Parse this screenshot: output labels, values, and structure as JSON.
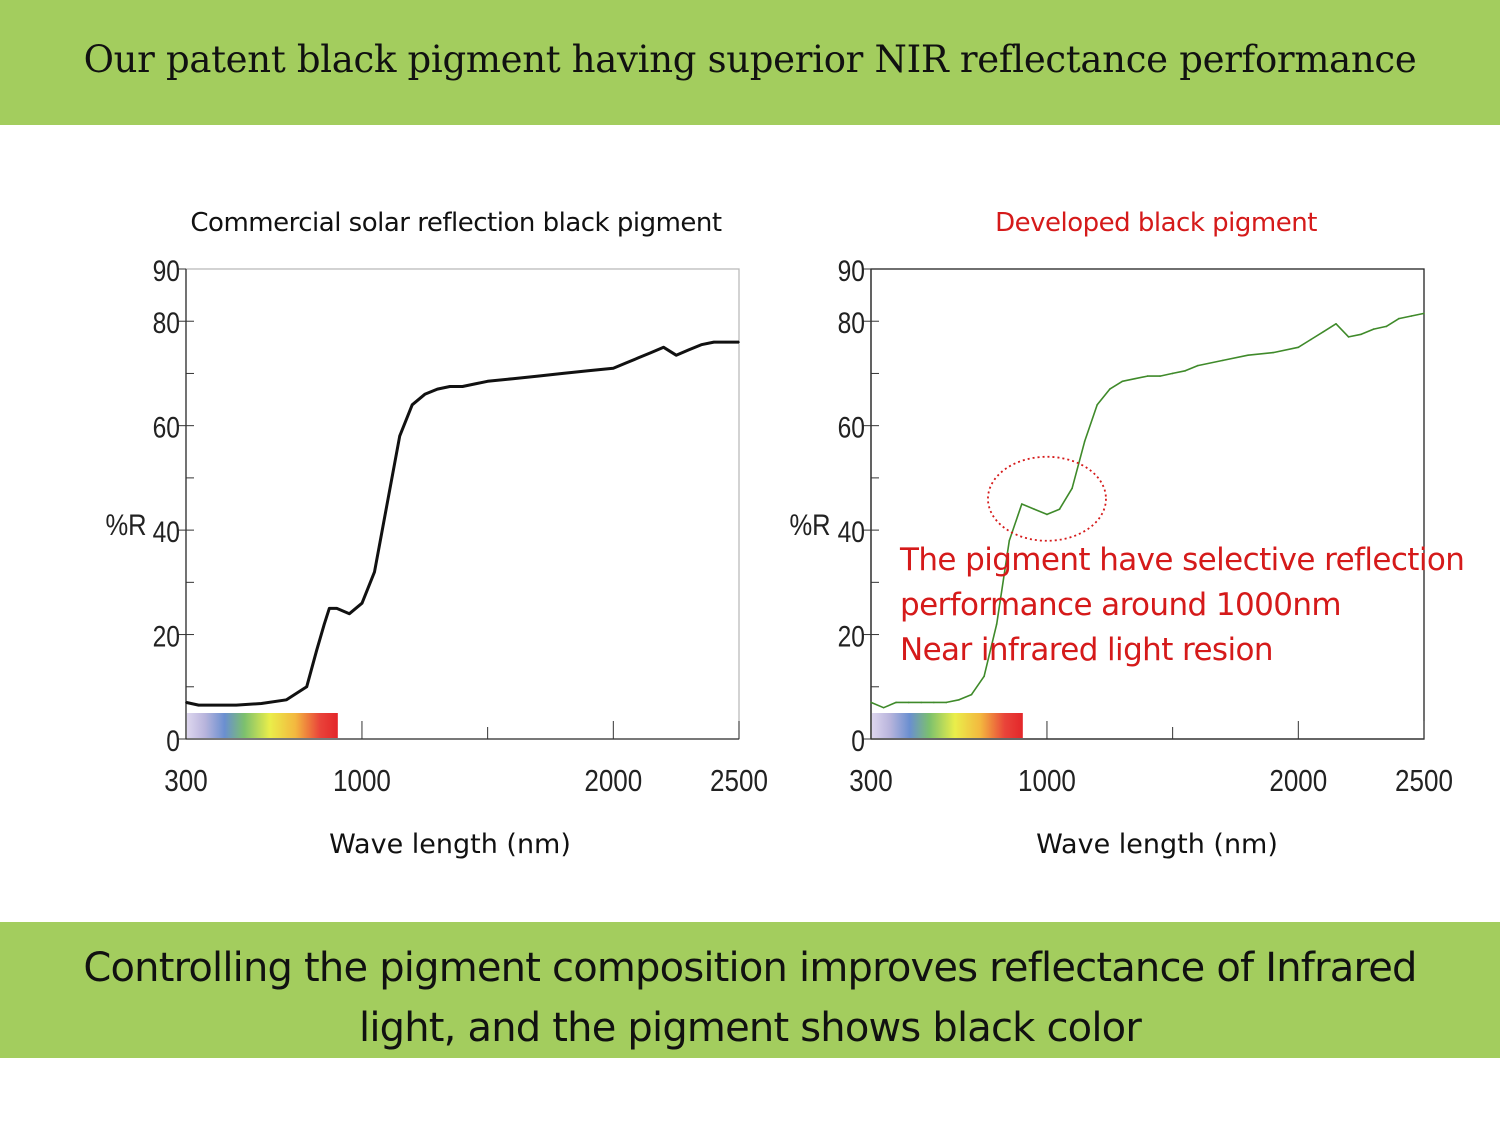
{
  "header": {
    "title": "Our patent black pigment having superior NIR reflectance performance"
  },
  "footer": {
    "line1": "Controlling the pigment composition improves reflectance of Infrared",
    "line2": "light, and the pigment shows black color"
  },
  "colors": {
    "banner": "#a3cd5e",
    "left_curve": "#111111",
    "right_curve": "#3f8a2a",
    "highlight": "#d51a1a"
  },
  "annotation": {
    "lines": [
      "The pigment have selective reflection",
      "performance around 1000nm",
      "Near infrared light resion"
    ]
  },
  "chart_data": [
    {
      "type": "line",
      "title": "Commercial solar reflection black pigment",
      "xlabel": "Wave length (nm)",
      "ylabel": "%R",
      "xlim": [
        300,
        2500
      ],
      "ylim": [
        0,
        90
      ],
      "x_ticks": [
        300,
        1000,
        2000,
        2500
      ],
      "y_ticks": [
        0,
        20,
        40,
        60,
        80,
        90
      ],
      "visible_spectrum_bar": [
        300,
        900
      ],
      "series": [
        {
          "color": "#111111",
          "x": [
            300,
            350,
            400,
            500,
            600,
            700,
            780,
            820,
            850,
            870,
            900,
            950,
            1000,
            1050,
            1100,
            1150,
            1200,
            1250,
            1300,
            1350,
            1400,
            1450,
            1500,
            1600,
            1700,
            1800,
            1900,
            2000,
            2050,
            2100,
            2150,
            2200,
            2250,
            2300,
            2350,
            2400,
            2450,
            2500
          ],
          "y": [
            7,
            6.5,
            6.5,
            6.5,
            6.8,
            7.5,
            10,
            17,
            22,
            25,
            25,
            24,
            26,
            32,
            45,
            58,
            64,
            66,
            67,
            67.5,
            67.5,
            68,
            68.5,
            69,
            69.5,
            70,
            70.5,
            71,
            72,
            73,
            74,
            75,
            73.5,
            74.5,
            75.5,
            76,
            76,
            76
          ]
        }
      ]
    },
    {
      "type": "line",
      "title": "Developed black pigment",
      "xlabel": "Wave length (nm)",
      "ylabel": "%R",
      "xlim": [
        300,
        2500
      ],
      "ylim": [
        0,
        90
      ],
      "x_ticks": [
        300,
        1000,
        2000,
        2500
      ],
      "y_ticks": [
        0,
        20,
        40,
        60,
        80,
        90
      ],
      "visible_spectrum_bar": [
        300,
        900
      ],
      "series": [
        {
          "color": "#3f8a2a",
          "x": [
            300,
            350,
            400,
            450,
            500,
            550,
            600,
            650,
            700,
            750,
            800,
            850,
            900,
            950,
            1000,
            1050,
            1100,
            1150,
            1200,
            1250,
            1300,
            1350,
            1400,
            1450,
            1500,
            1550,
            1600,
            1700,
            1800,
            1900,
            2000,
            2050,
            2100,
            2150,
            2200,
            2250,
            2300,
            2350,
            2400,
            2450,
            2500
          ],
          "y": [
            7,
            6,
            7,
            7,
            7,
            7,
            7,
            7.5,
            8.5,
            12,
            22,
            38,
            45,
            44,
            43,
            44,
            48,
            57,
            64,
            67,
            68.5,
            69,
            69.5,
            69.5,
            70,
            70.5,
            71.5,
            72.5,
            73.5,
            74,
            75,
            76.5,
            78,
            79.5,
            77,
            77.5,
            78.5,
            79,
            80.5,
            81,
            81.5
          ]
        }
      ]
    }
  ]
}
